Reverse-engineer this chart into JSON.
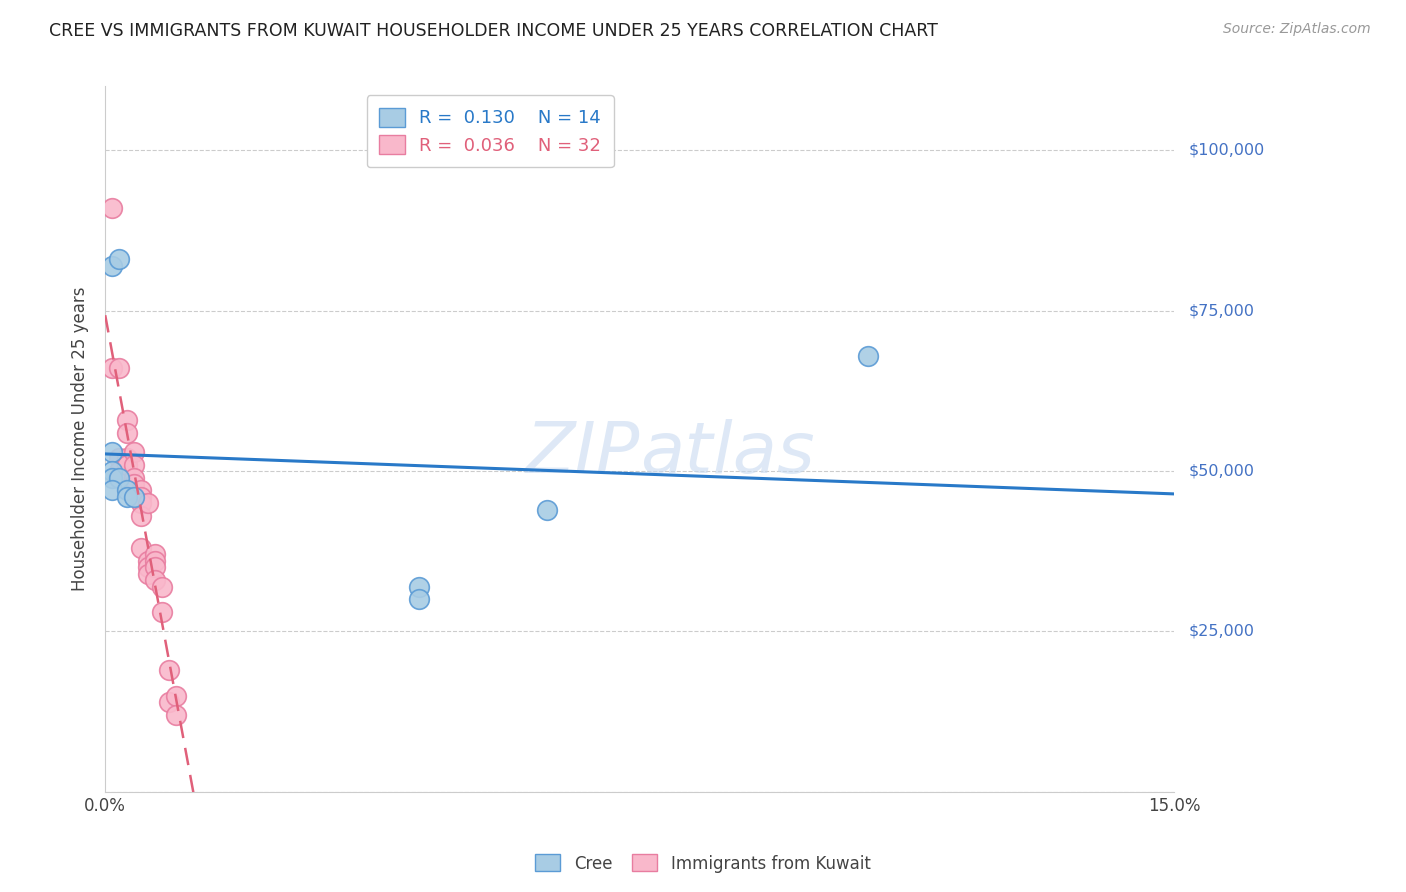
{
  "title": "CREE VS IMMIGRANTS FROM KUWAIT HOUSEHOLDER INCOME UNDER 25 YEARS CORRELATION CHART",
  "source": "Source: ZipAtlas.com",
  "ylabel": "Householder Income Under 25 years",
  "xlim": [
    0.0,
    0.15
  ],
  "ylim": [
    0,
    110000
  ],
  "yticks": [
    0,
    25000,
    50000,
    75000,
    100000
  ],
  "ytick_labels": [
    "",
    "$25,000",
    "$50,000",
    "$75,000",
    "$100,000"
  ],
  "cree_color": "#a8cce4",
  "kuwait_color": "#f9b8cb",
  "cree_edge_color": "#5b9bd5",
  "kuwait_edge_color": "#e87da0",
  "cree_line_color": "#2979c8",
  "kuwait_line_color": "#e0607a",
  "background_color": "#ffffff",
  "grid_color": "#cccccc",
  "ytick_color": "#4472c4",
  "watermark_color": "#c8daf0",
  "cree_x": [
    0.001,
    0.002,
    0.001,
    0.001,
    0.001,
    0.002,
    0.001,
    0.003,
    0.003,
    0.004,
    0.107,
    0.044,
    0.044,
    0.062
  ],
  "cree_y": [
    82000,
    83000,
    53000,
    50000,
    49000,
    49000,
    47000,
    47000,
    46000,
    46000,
    68000,
    32000,
    30000,
    44000
  ],
  "kuwait_x": [
    0.001,
    0.001,
    0.002,
    0.002,
    0.002,
    0.003,
    0.003,
    0.003,
    0.003,
    0.004,
    0.004,
    0.004,
    0.004,
    0.005,
    0.005,
    0.005,
    0.005,
    0.005,
    0.006,
    0.006,
    0.006,
    0.006,
    0.007,
    0.007,
    0.007,
    0.007,
    0.008,
    0.008,
    0.009,
    0.009,
    0.01,
    0.01
  ],
  "kuwait_y": [
    91000,
    66000,
    66000,
    52000,
    50000,
    58000,
    56000,
    52000,
    51000,
    53000,
    51000,
    49000,
    48000,
    47000,
    46000,
    45000,
    43000,
    38000,
    45000,
    36000,
    35000,
    34000,
    37000,
    36000,
    35000,
    33000,
    32000,
    28000,
    19000,
    14000,
    15000,
    12000
  ]
}
